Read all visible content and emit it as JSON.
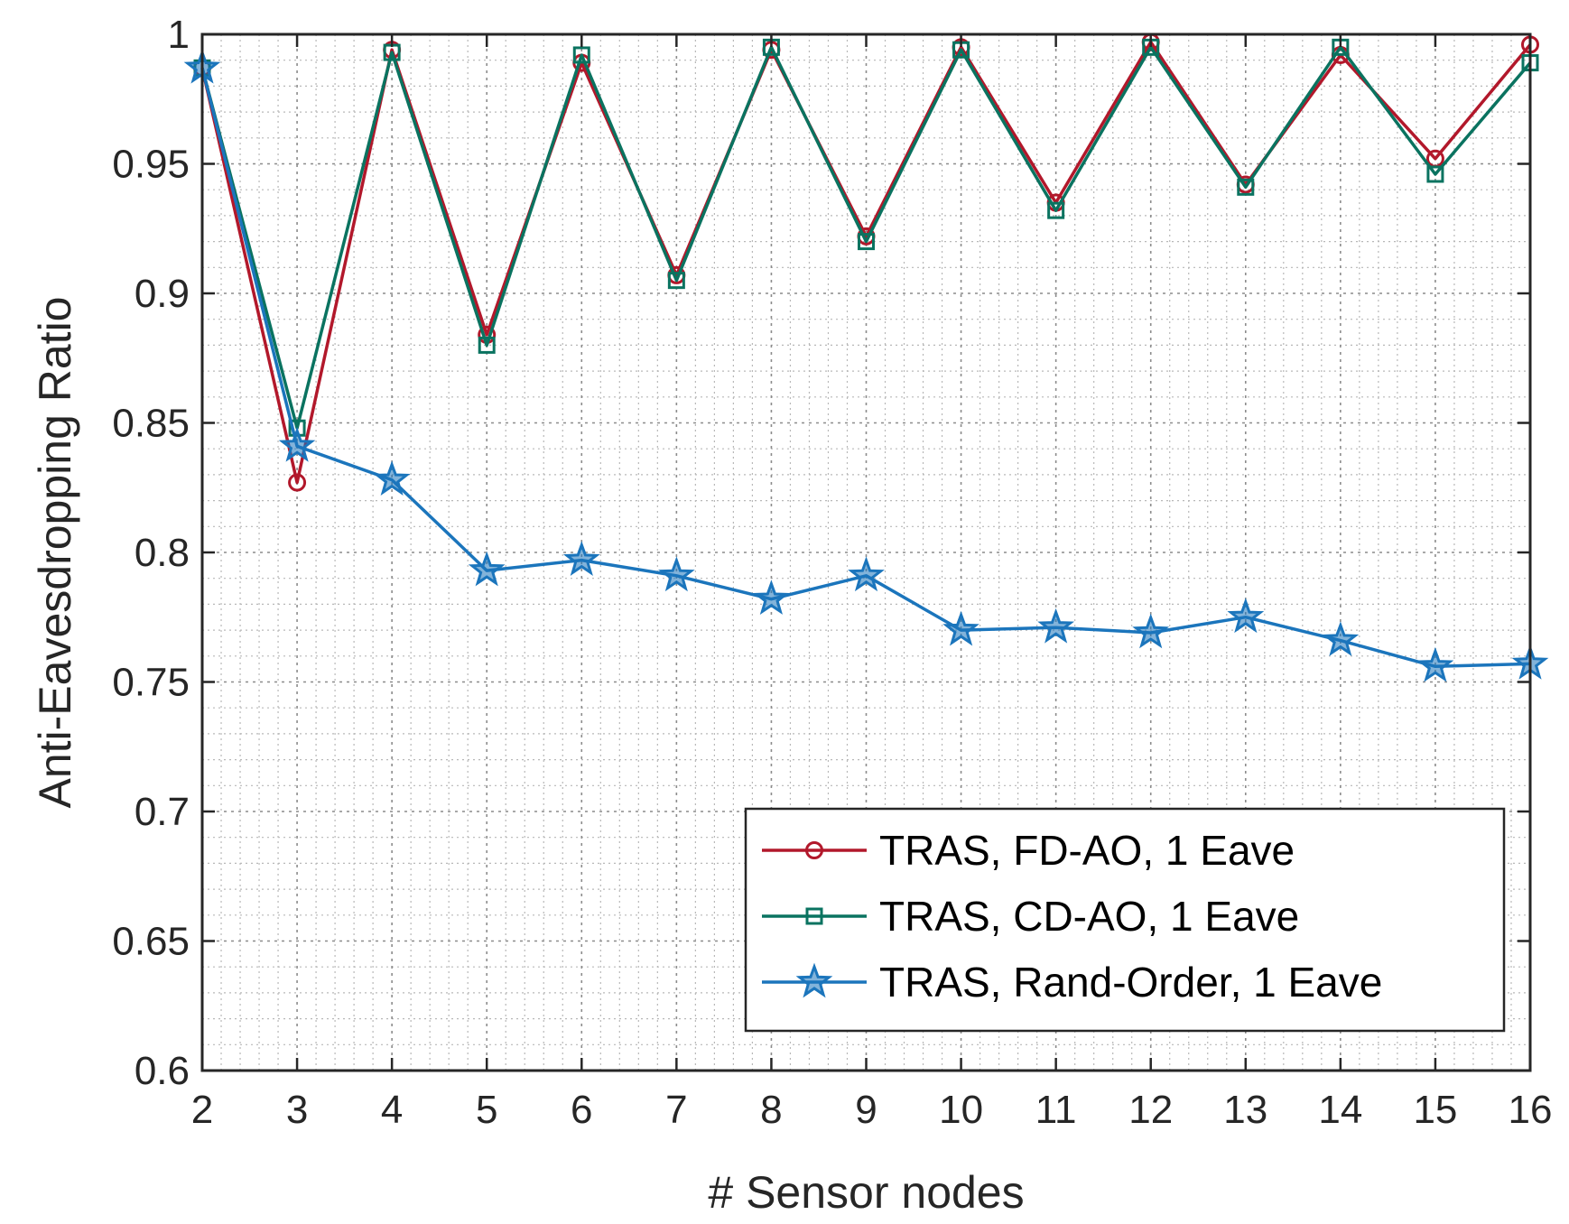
{
  "chart_data": {
    "type": "line",
    "title": "",
    "xlabel": "# Sensor nodes",
    "ylabel": "Anti-Eavesdropping Ratio",
    "x": [
      2,
      3,
      4,
      5,
      6,
      7,
      8,
      9,
      10,
      11,
      12,
      13,
      14,
      15,
      16
    ],
    "xlim": [
      2,
      16
    ],
    "ylim": [
      0.6,
      1
    ],
    "xticks": [
      2,
      3,
      4,
      5,
      6,
      7,
      8,
      9,
      10,
      11,
      12,
      13,
      14,
      15,
      16
    ],
    "yticks": [
      0.6,
      0.65,
      0.7,
      0.75,
      0.8,
      0.85,
      0.9,
      0.95,
      1
    ],
    "ytick_labels": [
      "0.6",
      "0.65",
      "0.7",
      "0.75",
      "0.8",
      "0.85",
      "0.9",
      "0.95",
      "1"
    ],
    "grid": "major and minor",
    "legend_position": "bottom-right",
    "series": [
      {
        "name": "TRAS, FD-AO, 1 Eave",
        "color": "#b2182b",
        "marker": "circle",
        "values": [
          0.987,
          0.827,
          0.994,
          0.884,
          0.989,
          0.907,
          0.994,
          0.922,
          0.995,
          0.935,
          0.997,
          0.942,
          0.992,
          0.952,
          0.996
        ]
      },
      {
        "name": "TRAS, CD-AO, 1 Eave",
        "color": "#0a7360",
        "marker": "square",
        "values": [
          0.987,
          0.848,
          0.993,
          0.88,
          0.992,
          0.905,
          0.995,
          0.92,
          0.994,
          0.932,
          0.995,
          0.941,
          0.995,
          0.946,
          0.989
        ]
      },
      {
        "name": "TRAS, Rand-Order, 1 Eave",
        "color": "#1b75bc",
        "marker": "star",
        "values": [
          0.987,
          0.841,
          0.828,
          0.793,
          0.797,
          0.791,
          0.782,
          0.791,
          0.77,
          0.771,
          0.769,
          0.775,
          0.766,
          0.756,
          0.757
        ]
      }
    ]
  }
}
